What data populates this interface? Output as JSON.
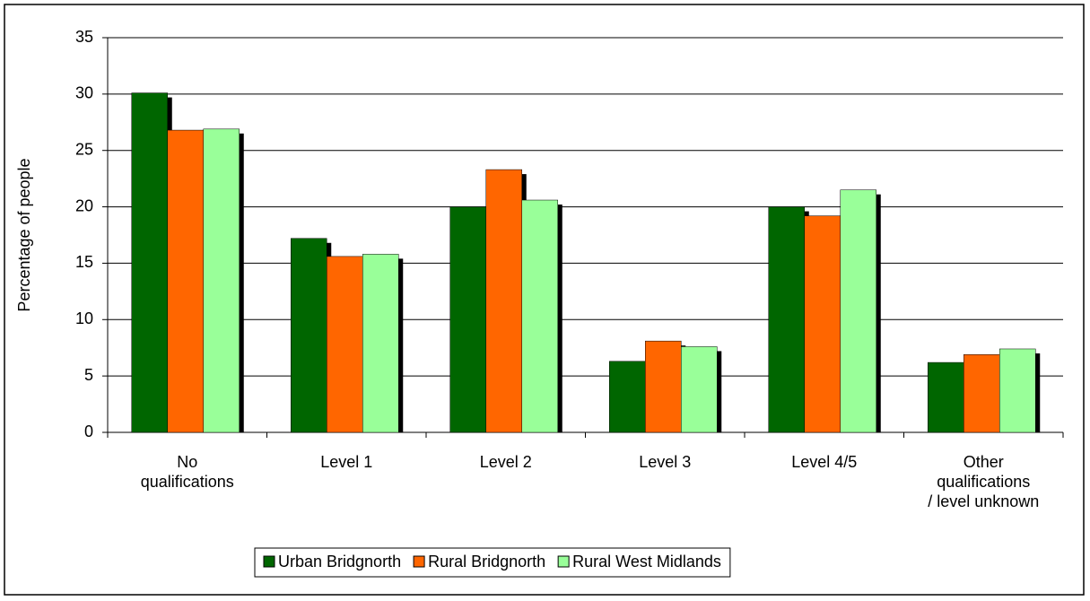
{
  "chart_data": {
    "type": "bar",
    "categories": [
      "No qualifications",
      "Level 1",
      "Level 2",
      "Level 3",
      "Level 4/5",
      "Other qualifications / level unknown"
    ],
    "series": [
      {
        "name": "Urban Bridgnorth",
        "color": "#006600",
        "values": [
          30.1,
          17.2,
          20.0,
          6.3,
          20.0,
          6.2
        ]
      },
      {
        "name": "Rural Bridgnorth",
        "color": "#ff6600",
        "values": [
          26.8,
          15.6,
          23.3,
          8.1,
          19.2,
          6.9
        ]
      },
      {
        "name": "Rural West Midlands",
        "color": "#99ff99",
        "values": [
          26.9,
          15.8,
          20.6,
          7.6,
          21.5,
          7.4
        ]
      }
    ],
    "y_label": "Percentage of people",
    "ylim": [
      0,
      35
    ],
    "yticks": [
      0,
      5,
      10,
      15,
      20,
      25,
      30,
      35
    ],
    "grid": true,
    "legend": "bottom"
  }
}
